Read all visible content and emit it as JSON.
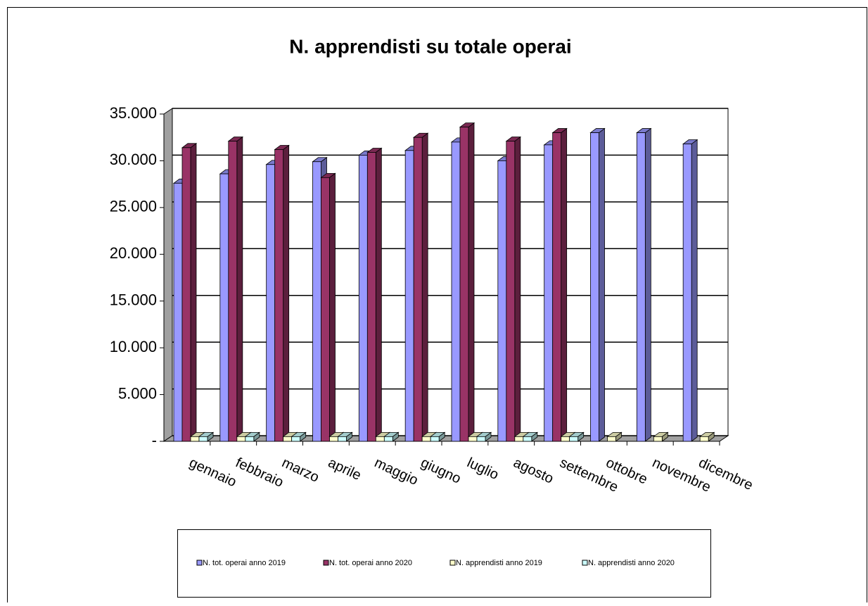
{
  "chart_data": {
    "type": "bar3d",
    "title": "N. apprendisti su totale operai",
    "categories": [
      "gennaio",
      "febbraio",
      "marzo",
      "aprile",
      "maggio",
      "giugno",
      "luglio",
      "agosto",
      "settembre",
      "ottobre",
      "novembre",
      "dicembre"
    ],
    "series": [
      {
        "name": "N. tot. operai anno 2019",
        "color": "#9999ff",
        "values": [
          27600,
          28600,
          29600,
          29900,
          30600,
          31100,
          32000,
          30000,
          31700,
          33000,
          33000,
          31800
        ]
      },
      {
        "name": "N. tot. operai anno 2020",
        "color": "#993366",
        "values": [
          31400,
          32100,
          31200,
          28200,
          30900,
          32500,
          33600,
          32100,
          33000,
          null,
          null,
          null
        ]
      },
      {
        "name": "N. apprendisti anno 2019",
        "color": "#ffffcc",
        "values": [
          500,
          500,
          500,
          500,
          500,
          500,
          500,
          500,
          500,
          500,
          500,
          500
        ]
      },
      {
        "name": "N. apprendisti anno 2020",
        "color": "#ccffff",
        "values": [
          500,
          500,
          500,
          500,
          500,
          500,
          500,
          500,
          500,
          null,
          null,
          null
        ]
      }
    ],
    "ylim": [
      0,
      35000
    ],
    "yticks": [
      {
        "value": 0,
        "label": "-"
      },
      {
        "value": 5000,
        "label": "5.000"
      },
      {
        "value": 10000,
        "label": "10.000"
      },
      {
        "value": 15000,
        "label": "15.000"
      },
      {
        "value": 20000,
        "label": "20.000"
      },
      {
        "value": 25000,
        "label": "25.000"
      },
      {
        "value": 30000,
        "label": "30.000"
      },
      {
        "value": 35000,
        "label": "35.000"
      }
    ],
    "grid": true
  }
}
